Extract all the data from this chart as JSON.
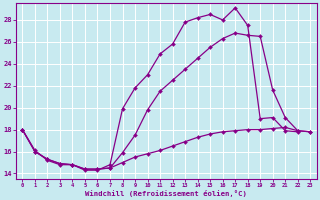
{
  "xlabel": "Windchill (Refroidissement éolien,°C)",
  "bg_color": "#c8eaf0",
  "line_color": "#880088",
  "grid_color": "#ffffff",
  "ylim": [
    13.5,
    29.5
  ],
  "xlim": [
    -0.5,
    23.5
  ],
  "yticks": [
    14,
    16,
    18,
    20,
    22,
    24,
    26,
    28
  ],
  "xticks": [
    0,
    1,
    2,
    3,
    4,
    5,
    6,
    7,
    8,
    9,
    10,
    11,
    12,
    13,
    14,
    15,
    16,
    17,
    18,
    19,
    20,
    21,
    22,
    23
  ],
  "line1_x": [
    0,
    1,
    2,
    3,
    4,
    5,
    6,
    7,
    8,
    9,
    10,
    11,
    12,
    13,
    14,
    15,
    16,
    17,
    18,
    19,
    20,
    21,
    22
  ],
  "line1_y": [
    18.0,
    16.1,
    15.2,
    14.8,
    14.8,
    14.3,
    14.3,
    14.8,
    19.9,
    21.8,
    23.0,
    24.9,
    25.8,
    27.8,
    28.2,
    28.5,
    28.0,
    29.1,
    27.5,
    19.0,
    19.1,
    17.9,
    17.8
  ],
  "line2_x": [
    0,
    1,
    2,
    3,
    4,
    5,
    6,
    7,
    8,
    9,
    10,
    11,
    12,
    13,
    14,
    15,
    16,
    17,
    18,
    19,
    20,
    21,
    22,
    23
  ],
  "line2_y": [
    18.0,
    16.0,
    15.3,
    14.9,
    14.8,
    14.4,
    14.4,
    14.5,
    15.9,
    17.5,
    19.8,
    21.5,
    22.5,
    23.5,
    24.5,
    25.5,
    26.3,
    26.8,
    26.6,
    26.5,
    21.6,
    19.1,
    17.9,
    17.8
  ],
  "line3_x": [
    0,
    1,
    2,
    3,
    4,
    5,
    6,
    7,
    8,
    9,
    10,
    11,
    12,
    13,
    14,
    15,
    16,
    17,
    18,
    19,
    20,
    21,
    22,
    23
  ],
  "line3_y": [
    18.0,
    16.0,
    15.3,
    14.9,
    14.8,
    14.4,
    14.4,
    14.5,
    15.0,
    15.5,
    15.8,
    16.1,
    16.5,
    16.9,
    17.3,
    17.6,
    17.8,
    17.9,
    18.0,
    18.0,
    18.1,
    18.2,
    17.9,
    17.8
  ]
}
